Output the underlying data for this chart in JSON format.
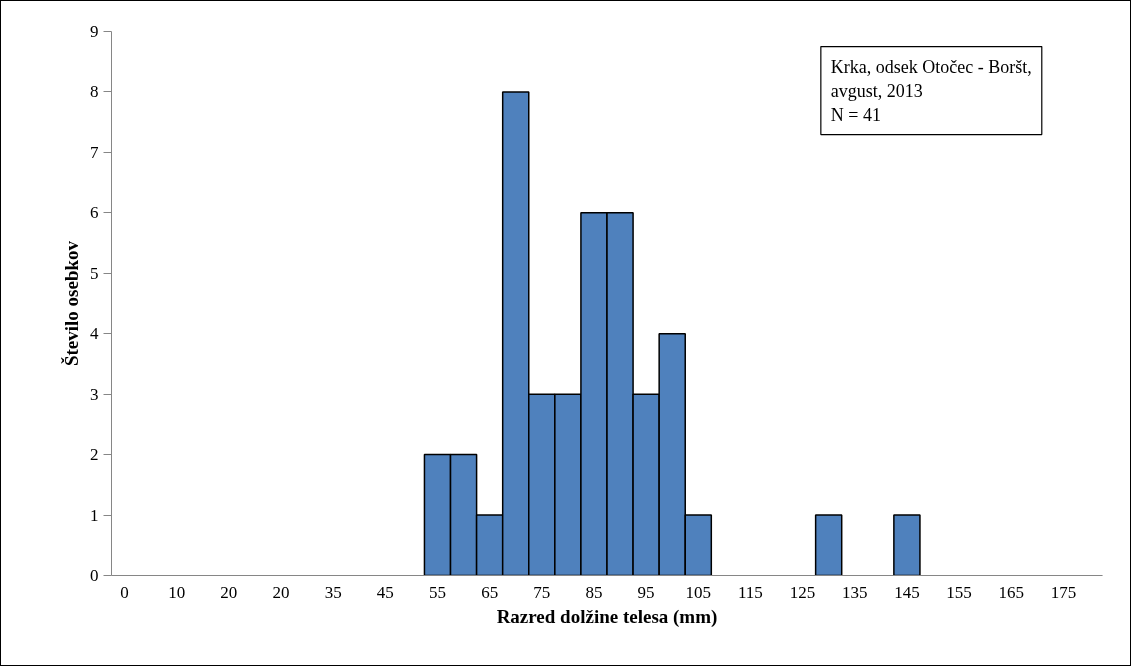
{
  "chart_data": {
    "type": "bar",
    "xlabel": "Razred dolžine telesa (mm)",
    "ylabel": "Število osebkov",
    "categories": [
      "0",
      null,
      "10",
      null,
      "20",
      null,
      "20",
      null,
      "35",
      null,
      "45",
      null,
      "55",
      null,
      "65",
      null,
      "75",
      null,
      "85",
      null,
      "95",
      null,
      "105",
      null,
      "115",
      null,
      "125",
      null,
      "135",
      null,
      "145",
      null,
      "155",
      null,
      "165",
      null,
      "175",
      null
    ],
    "values": [
      0,
      0,
      0,
      0,
      0,
      0,
      0,
      0,
      0,
      0,
      0,
      0,
      2,
      2,
      1,
      8,
      3,
      3,
      6,
      6,
      3,
      4,
      1,
      0,
      0,
      0,
      0,
      1,
      0,
      0,
      1,
      0,
      0,
      0,
      0,
      0,
      0,
      0
    ],
    "color": "#4f81bd",
    "ylim": [
      0,
      9
    ],
    "yticks": [
      0,
      1,
      2,
      3,
      4,
      5,
      6,
      7,
      8,
      9
    ],
    "grid": false,
    "annotations": [
      "Krka, odsek Otočec - Boršt,\navgust, 2013\nN = 41"
    ]
  }
}
